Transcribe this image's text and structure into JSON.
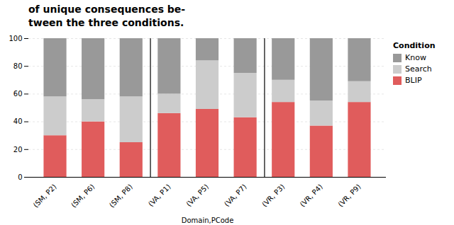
{
  "chart_data": {
    "type": "bar",
    "title": "of unique consequences be-",
    "subtitle": "tween the three conditions.",
    "categories": [
      "(SM, P2)",
      "(SM, P6)",
      "(SM, P8)",
      "(VA, P1)",
      "(VA, P5)",
      "(VA, P7)",
      "(VR, P3)",
      "(VR, P4)",
      "(VR, P9)"
    ],
    "series": [
      {
        "name": "BLIP",
        "color": "#e05c5c",
        "values": [
          30,
          40,
          25,
          46,
          49,
          43,
          54,
          37,
          54
        ]
      },
      {
        "name": "Search",
        "color": "#cccccc",
        "values": [
          28,
          16,
          33,
          14,
          35,
          32,
          16,
          18,
          15
        ]
      },
      {
        "name": "Know",
        "color": "#999999",
        "values": [
          42,
          44,
          42,
          40,
          16,
          25,
          30,
          45,
          31
        ]
      }
    ],
    "stacked": true,
    "xlabel": "Domain,PCode",
    "ylim": [
      0,
      100
    ],
    "yticks": [
      0,
      20,
      40,
      60,
      80,
      100
    ],
    "grid": true,
    "legend": "upper right",
    "legend_title": "Condition"
  }
}
